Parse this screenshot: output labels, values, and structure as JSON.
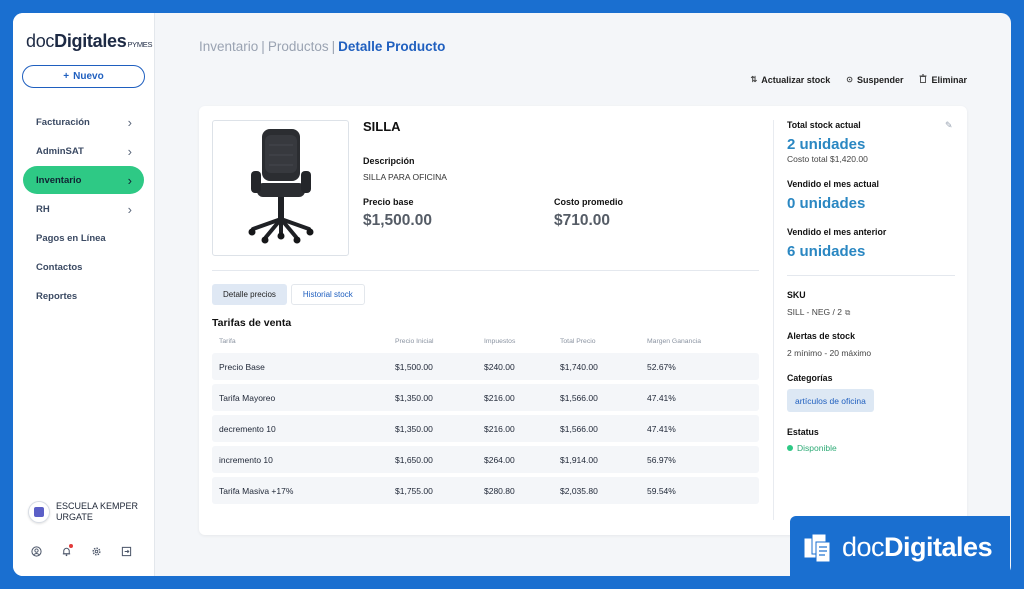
{
  "app": {
    "logo_doc": "doc",
    "logo_digitales": "Digitales",
    "logo_pymes": "PYMES",
    "new_button": "Nuevo"
  },
  "sidebar": {
    "items": [
      {
        "label": "Facturación",
        "has_chevron": true
      },
      {
        "label": "AdminSAT",
        "has_chevron": true
      },
      {
        "label": "Inventario",
        "has_chevron": true,
        "active": true
      },
      {
        "label": "RH",
        "has_chevron": true
      },
      {
        "label": "Pagos en Línea",
        "has_chevron": false
      },
      {
        "label": "Contactos",
        "has_chevron": false
      },
      {
        "label": "Reportes",
        "has_chevron": false
      }
    ],
    "user_name_line1": "ESCUELA KEMPER",
    "user_name_line2": "URGATE",
    "bottom_icons": [
      "user-circle-icon",
      "bell-icon",
      "gear-icon",
      "logout-icon"
    ]
  },
  "breadcrumb": {
    "level1": "Inventario",
    "level2": "Productos",
    "current": "Detalle Producto"
  },
  "actions": {
    "update_stock": "Actualizar stock",
    "suspend": "Suspender",
    "delete": "Eliminar"
  },
  "product": {
    "name": "SILLA",
    "description_label": "Descripción",
    "description": "SILLA PARA OFICINA",
    "base_price_label": "Precio base",
    "base_price": "$1,500.00",
    "avg_cost_label": "Costo promedio",
    "avg_cost": "$710.00"
  },
  "tabs": [
    {
      "label": "Detalle precios",
      "active": true
    },
    {
      "label": "Historial stock",
      "active": false
    }
  ],
  "tarifas": {
    "title": "Tarifas de venta",
    "columns": [
      "Tarifa",
      "Precio Inicial",
      "Impuestos",
      "Total Precio",
      "Margen Ganancia"
    ],
    "rows": [
      [
        "Precio Base",
        "$1,500.00",
        "$240.00",
        "$1,740.00",
        "52.67%"
      ],
      [
        "Tarifa Mayoreo",
        "$1,350.00",
        "$216.00",
        "$1,566.00",
        "47.41%"
      ],
      [
        "decremento 10",
        "$1,350.00",
        "$216.00",
        "$1,566.00",
        "47.41%"
      ],
      [
        "incremento 10",
        "$1,650.00",
        "$264.00",
        "$1,914.00",
        "56.97%"
      ],
      [
        "Tarifa Masiva +17%",
        "$1,755.00",
        "$280.80",
        "$2,035.80",
        "59.54%"
      ]
    ]
  },
  "stock": {
    "total_label": "Total stock actual",
    "total_value": "2 unidades",
    "total_cost": "Costo total $1,420.00",
    "sold_month_label": "Vendido el mes actual",
    "sold_month_value": "0 unidades",
    "sold_prev_label": "Vendido el mes anterior",
    "sold_prev_value": "6 unidades",
    "sku_label": "SKU",
    "sku_value": "SILL - NEG / 2",
    "alerts_label": "Alertas de stock",
    "alerts_value": "2 mínimo - 20 máximo",
    "categories_label": "Categorías",
    "category": "artículos de oficina",
    "status_label": "Estatus",
    "status_value": "Disponible"
  },
  "brand_badge": {
    "doc": "doc",
    "digitales": "Digitales"
  },
  "colors": {
    "brand_blue": "#1a6fd0",
    "accent_green": "#2ec985",
    "stock_blue": "#2a87c2"
  }
}
